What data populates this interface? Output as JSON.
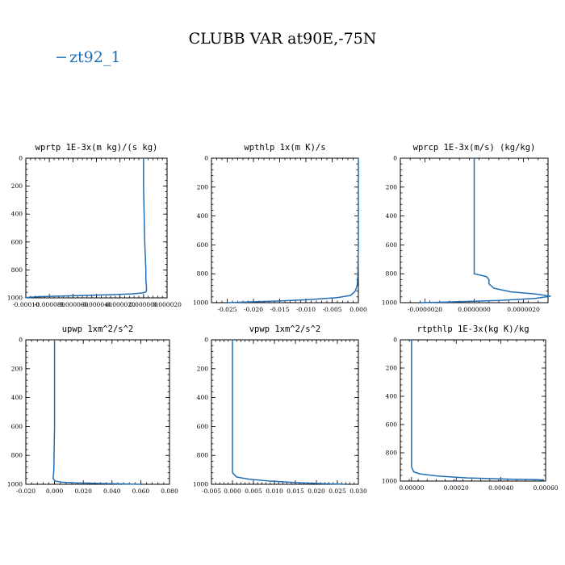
{
  "figure": {
    "title": "CLUBB VAR at90E,-75N",
    "legend_label": "zt92_1",
    "series_color": "#1f6fb4"
  },
  "chart_data": [
    {
      "type": "line",
      "title": "wprtp  1E-3x(m kg)/(s kg)",
      "xlim": [
        -0.0001,
        2e-05
      ],
      "ylim": [
        1000,
        0
      ],
      "xticks": [
        "-0.00010",
        "-0.000080",
        "-0.000060",
        "-0.000040",
        "-0.000020",
        "0.000000",
        "0.000020"
      ],
      "xtick_values": [
        -0.0001,
        -8e-05,
        -6e-05,
        -4e-05,
        -2e-05,
        0.0,
        2e-05
      ],
      "yticks": [
        "0",
        "200",
        "400",
        "600",
        "800",
        "1000"
      ],
      "ytick_values": [
        0,
        200,
        400,
        600,
        800,
        1000
      ],
      "grid": false,
      "series": [
        {
          "x": [
            0.0,
            0.0,
            0.0,
            5e-07,
            1e-06,
            2e-06,
            2e-06,
            2.5e-06,
            2.5e-06,
            1.5e-06,
            -2e-06,
            -1e-05,
            -3e-05,
            -6e-05,
            -9e-05,
            -0.0001
          ],
          "y": [
            0,
            100,
            200,
            400,
            600,
            800,
            880,
            920,
            950,
            960,
            966,
            972,
            978,
            985,
            992,
            998
          ]
        }
      ]
    },
    {
      "type": "line",
      "title": "wpthlp  1x(m K)/s",
      "xlim": [
        -0.028,
        0.0
      ],
      "ylim": [
        1000,
        0
      ],
      "xticks": [
        "-0.025",
        "-0.020",
        "-0.015",
        "-0.010",
        "-0.005",
        "0.000"
      ],
      "xtick_values": [
        -0.025,
        -0.02,
        -0.015,
        -0.01,
        -0.005,
        0.0
      ],
      "yticks": [
        "0",
        "200",
        "400",
        "600",
        "800",
        "1000"
      ],
      "ytick_values": [
        0,
        200,
        400,
        600,
        800,
        1000
      ],
      "grid": false,
      "series": [
        {
          "x": [
            0.0,
            0.0,
            0.0,
            -0.0001,
            -0.0002,
            -0.0006,
            -0.0015,
            -0.004,
            -0.009,
            -0.015,
            -0.021,
            -0.025
          ],
          "y": [
            0,
            200,
            600,
            800,
            880,
            920,
            950,
            965,
            978,
            988,
            995,
            1000
          ]
        }
      ]
    },
    {
      "type": "line",
      "title": "wprcp  1E-3x(m/s) (kg/kg)",
      "xlim": [
        -3e-06,
        3e-06
      ],
      "ylim": [
        1000,
        0
      ],
      "xticks": [
        "-0.0000020",
        "0.0000000",
        "0.0000020"
      ],
      "xtick_values": [
        -2e-06,
        0.0,
        2e-06
      ],
      "yticks": [
        "0",
        "200",
        "400",
        "600",
        "800",
        "1000"
      ],
      "ytick_values": [
        0,
        200,
        400,
        600,
        800,
        1000
      ],
      "grid": false,
      "series": [
        {
          "x": [
            0.0,
            0.0,
            0.0,
            0.0,
            5e-07,
            6e-07,
            6e-07,
            8e-07,
            1.5e-06,
            2.5e-06,
            3.1e-06,
            2.5e-06,
            1e-06,
            -1e-06,
            -2.2e-06
          ],
          "y": [
            0,
            200,
            600,
            800,
            820,
            840,
            870,
            900,
            925,
            940,
            955,
            970,
            985,
            995,
            1000
          ]
        }
      ]
    },
    {
      "type": "line",
      "title": "upwp  1xm^2/s^2",
      "xlim": [
        -0.02,
        0.08
      ],
      "ylim": [
        1000,
        0
      ],
      "xticks": [
        "-0.020",
        "0.000",
        "0.020",
        "0.040",
        "0.060",
        "0.080"
      ],
      "xtick_values": [
        -0.02,
        0.0,
        0.02,
        0.04,
        0.06,
        0.08
      ],
      "yticks": [
        "0",
        "200",
        "400",
        "600",
        "800",
        "1000"
      ],
      "ytick_values": [
        0,
        200,
        400,
        600,
        800,
        1000
      ],
      "grid": false,
      "series": [
        {
          "x": [
            0.0,
            0.0,
            0.0,
            -0.0005,
            -0.001,
            0.0005,
            0.005,
            0.015,
            0.03,
            0.045,
            0.06
          ],
          "y": [
            0,
            200,
            600,
            900,
            960,
            978,
            985,
            990,
            994,
            997,
            1000
          ]
        }
      ]
    },
    {
      "type": "line",
      "title": "vpwp  1xm^2/s^2",
      "xlim": [
        -0.005,
        0.03
      ],
      "ylim": [
        1000,
        0
      ],
      "xticks": [
        "-0.005",
        "0.000",
        "0.005",
        "0.010",
        "0.015",
        "0.020",
        "0.025",
        "0.030"
      ],
      "xtick_values": [
        -0.005,
        0.0,
        0.005,
        0.01,
        0.015,
        0.02,
        0.025,
        0.03
      ],
      "yticks": [
        "0",
        "200",
        "400",
        "600",
        "800",
        "1000"
      ],
      "ytick_values": [
        0,
        200,
        400,
        600,
        800,
        1000
      ],
      "grid": false,
      "series": [
        {
          "x": [
            0.0,
            0.0,
            0.0,
            0.0,
            0.001,
            0.004,
            0.009,
            0.015,
            0.021,
            0.027
          ],
          "y": [
            0,
            200,
            600,
            920,
            950,
            965,
            978,
            988,
            995,
            1000
          ]
        }
      ]
    },
    {
      "type": "line",
      "title": "rtpthlp  1E-3x(kg K)/kg",
      "xlim": [
        -5e-05,
        0.0006
      ],
      "ylim": [
        1000,
        0
      ],
      "xticks": [
        "0.00000",
        "0.00020",
        "0.00040",
        "0.00060"
      ],
      "xtick_values": [
        0.0,
        0.0002,
        0.0004,
        0.0006
      ],
      "yticks": [
        "0",
        "200",
        "400",
        "600",
        "800",
        "1000"
      ],
      "ytick_values": [
        0,
        200,
        400,
        600,
        800,
        1000
      ],
      "grid": false,
      "series": [
        {
          "x": [
            0.0,
            0.0,
            0.0,
            0.0,
            1e-05,
            4e-05,
            0.00012,
            0.00025,
            0.00042,
            0.00056,
            0.00059,
            0.00057
          ],
          "y": [
            0,
            200,
            600,
            900,
            935,
            950,
            965,
            978,
            986,
            990,
            993,
            996
          ]
        }
      ]
    }
  ]
}
